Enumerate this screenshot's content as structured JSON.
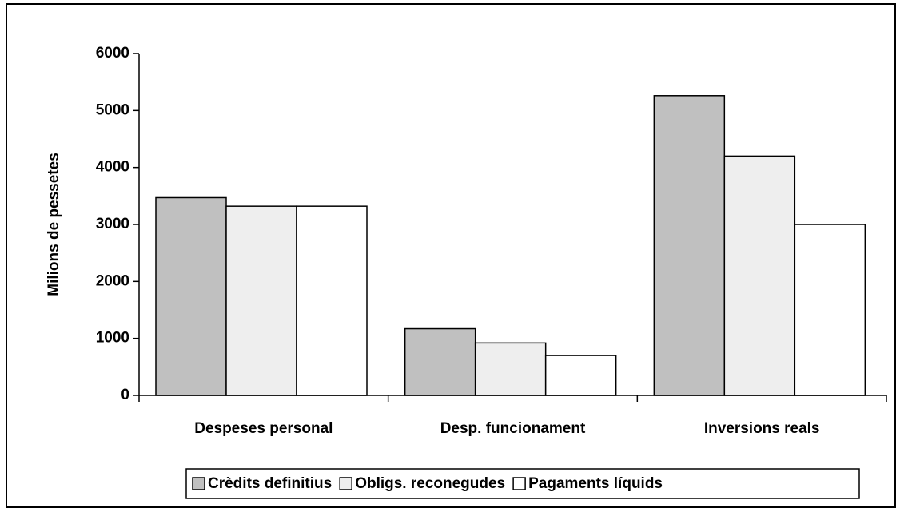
{
  "chart_data": {
    "type": "bar",
    "y_label": "Milions de pessetes",
    "categories": [
      "Despeses personal",
      "Desp. funcionament",
      "Inversions reals"
    ],
    "series": [
      {
        "name": "Crèdits definitius",
        "color": "#c0c0c0",
        "values": [
          3470,
          1170,
          5260
        ]
      },
      {
        "name": "Obligs. reconegudes",
        "color": "#eeeeee",
        "values": [
          3320,
          920,
          4200
        ]
      },
      {
        "name": "Pagaments líquids",
        "color": "#ffffff",
        "values": [
          3320,
          700,
          3000
        ]
      }
    ],
    "ylim": [
      0,
      6000
    ],
    "yticks": [
      0,
      1000,
      2000,
      3000,
      4000,
      5000,
      6000
    ],
    "legend": "bottom"
  }
}
